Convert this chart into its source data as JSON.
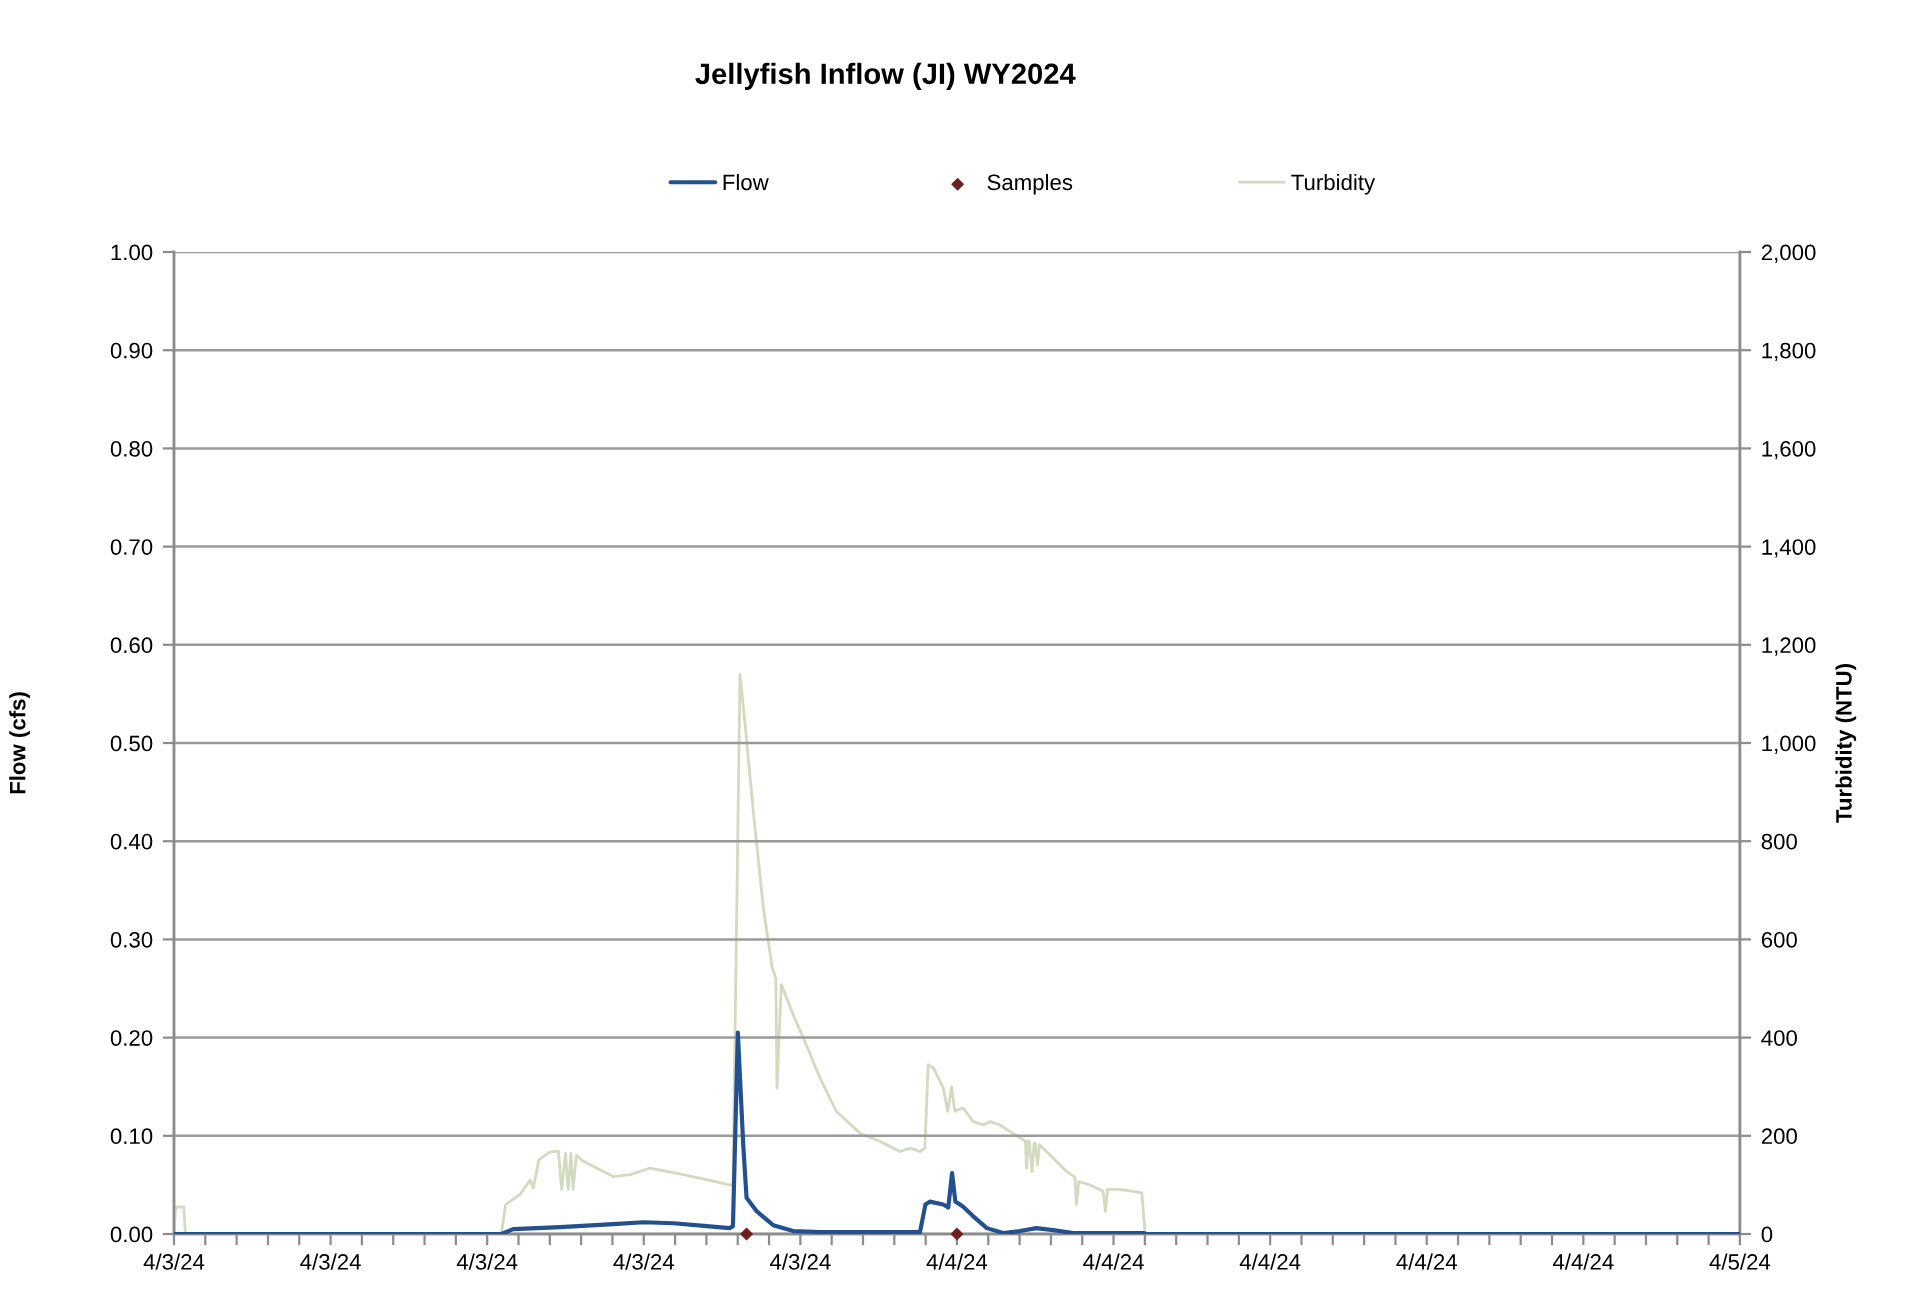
{
  "chart_data": {
    "type": "line",
    "title": "Jellyfish Inflow (JI) WY2024",
    "ylabel": "Flow (cfs)",
    "y2label": "Turbidity (NTU)",
    "xlim": [
      "2024-04-03T00:00",
      "2024-04-05T00:00"
    ],
    "xticks": [
      {
        "value": "2024-04-03T00:00",
        "label": "4/3/24"
      },
      {
        "value": "2024-04-03T00:57:36",
        "label": null
      },
      {
        "value": "2024-04-03T01:55:12",
        "label": null
      },
      {
        "value": "2024-04-03T02:52:48",
        "label": null
      },
      {
        "value": "2024-04-03T03:50:24",
        "label": null
      },
      {
        "value": "2024-04-03T04:48",
        "label": "4/3/24"
      },
      {
        "value": "2024-04-03T05:45:36",
        "label": null
      },
      {
        "value": "2024-04-03T06:43:12",
        "label": null
      },
      {
        "value": "2024-04-03T07:40:48",
        "label": null
      },
      {
        "value": "2024-04-03T08:38:24",
        "label": null
      },
      {
        "value": "2024-04-03T09:36",
        "label": "4/3/24"
      },
      {
        "value": "2024-04-03T10:33:36",
        "label": null
      },
      {
        "value": "2024-04-03T11:31:12",
        "label": null
      },
      {
        "value": "2024-04-03T12:28:48",
        "label": null
      },
      {
        "value": "2024-04-03T13:26:24",
        "label": null
      },
      {
        "value": "2024-04-03T14:24",
        "label": "4/3/24"
      },
      {
        "value": "2024-04-03T15:21:36",
        "label": null
      },
      {
        "value": "2024-04-03T16:19:12",
        "label": null
      },
      {
        "value": "2024-04-03T17:16:48",
        "label": null
      },
      {
        "value": "2024-04-03T18:14:24",
        "label": null
      },
      {
        "value": "2024-04-03T19:12",
        "label": "4/3/24"
      },
      {
        "value": "2024-04-03T20:09:36",
        "label": null
      },
      {
        "value": "2024-04-03T21:07:12",
        "label": null
      },
      {
        "value": "2024-04-03T22:04:48",
        "label": null
      },
      {
        "value": "2024-04-03T23:02:24",
        "label": null
      },
      {
        "value": "2024-04-04T00:00",
        "label": "4/4/24"
      },
      {
        "value": "2024-04-04T00:57:36",
        "label": null
      },
      {
        "value": "2024-04-04T01:55:12",
        "label": null
      },
      {
        "value": "2024-04-04T02:52:48",
        "label": null
      },
      {
        "value": "2024-04-04T03:50:24",
        "label": null
      },
      {
        "value": "2024-04-04T04:48",
        "label": "4/4/24"
      },
      {
        "value": "2024-04-04T05:45:36",
        "label": null
      },
      {
        "value": "2024-04-04T06:43:12",
        "label": null
      },
      {
        "value": "2024-04-04T07:40:48",
        "label": null
      },
      {
        "value": "2024-04-04T08:38:24",
        "label": null
      },
      {
        "value": "2024-04-04T09:36",
        "label": "4/4/24"
      },
      {
        "value": "2024-04-04T10:33:36",
        "label": null
      },
      {
        "value": "2024-04-04T11:31:12",
        "label": null
      },
      {
        "value": "2024-04-04T12:28:48",
        "label": null
      },
      {
        "value": "2024-04-04T13:26:24",
        "label": null
      },
      {
        "value": "2024-04-04T14:24",
        "label": "4/4/24"
      },
      {
        "value": "2024-04-04T15:21:36",
        "label": null
      },
      {
        "value": "2024-04-04T16:19:12",
        "label": null
      },
      {
        "value": "2024-04-04T17:16:48",
        "label": null
      },
      {
        "value": "2024-04-04T18:14:24",
        "label": null
      },
      {
        "value": "2024-04-04T19:12",
        "label": "4/4/24"
      },
      {
        "value": "2024-04-04T20:09:36",
        "label": null
      },
      {
        "value": "2024-04-04T21:07:12",
        "label": null
      },
      {
        "value": "2024-04-04T22:04:48",
        "label": null
      },
      {
        "value": "2024-04-04T23:02:24",
        "label": null
      },
      {
        "value": "2024-04-05T00:00",
        "label": "4/5/24"
      }
    ],
    "ylim": [
      0,
      1
    ],
    "yticks": [
      {
        "value": 0,
        "label": "0.00"
      },
      {
        "value": 0.1,
        "label": "0.10"
      },
      {
        "value": 0.2,
        "label": "0.20"
      },
      {
        "value": 0.3,
        "label": "0.30"
      },
      {
        "value": 0.4,
        "label": "0.40"
      },
      {
        "value": 0.5,
        "label": "0.50"
      },
      {
        "value": 0.6,
        "label": "0.60"
      },
      {
        "value": 0.7,
        "label": "0.70"
      },
      {
        "value": 0.8,
        "label": "0.80"
      },
      {
        "value": 0.9,
        "label": "0.90"
      },
      {
        "value": 1,
        "label": "1.00"
      }
    ],
    "y2lim": [
      0,
      2000
    ],
    "y2ticks": [
      0,
      200,
      400,
      600,
      800,
      {
        "value": 1000,
        "label": "1,000"
      },
      {
        "value": 1200,
        "label": "1,200"
      },
      {
        "value": 1400,
        "label": "1,400"
      },
      {
        "value": 1600,
        "label": "1,600"
      },
      {
        "value": 1800,
        "label": "1,800"
      },
      {
        "value": 2000,
        "label": "2,000"
      }
    ],
    "grid": "y",
    "legend": "top",
    "series": [
      {
        "name": "Flow",
        "color": "#23508e",
        "x": [
          "2024-04-03T00:00",
          "2024-04-03T10:02",
          "2024-04-03T10:24",
          "2024-04-03T11:50",
          "2024-04-03T13:28",
          "2024-04-03T14:23",
          "2024-04-03T15:19",
          "2024-04-03T16:20",
          "2024-04-03T17:02",
          "2024-04-03T17:08",
          "2024-04-03T17:17",
          "2024-04-03T17:27",
          "2024-04-03T17:33",
          "2024-04-03T17:52",
          "2024-04-03T18:22",
          "2024-04-03T18:59",
          "2024-04-03T19:48",
          "2024-04-03T22:52",
          "2024-04-03T23:02",
          "2024-04-03T23:10",
          "2024-04-03T23:35",
          "2024-04-03T23:44",
          "2024-04-03T23:51",
          "2024-04-03T23:57",
          "2024-04-04T00:11",
          "2024-04-04T00:30",
          "2024-04-04T00:55",
          "2024-04-04T01:25",
          "2024-04-04T01:56",
          "2024-04-04T02:26",
          "2024-04-04T02:57",
          "2024-04-04T03:34",
          "2024-04-04T05:43",
          "2024-04-04T05:48",
          "2024-04-05T00:00"
        ],
        "values": [
          0,
          0,
          0.005,
          0.007,
          0.01,
          0.012,
          0.011,
          0.008,
          0.006,
          0.008,
          0.205,
          0.09,
          0.037,
          0.023,
          0.009,
          0.003,
          0.002,
          0.002,
          0.03,
          0.033,
          0.03,
          0.027,
          0.062,
          0.033,
          0.028,
          0.018,
          0.006,
          0.001,
          0.003,
          0.006,
          0.004,
          0.001,
          0.001,
          0,
          0
        ]
      },
      {
        "name": "Samples",
        "type": "scatter",
        "marker": "diamond",
        "color": "#6e1f1f",
        "x": [
          "2024-04-03T17:33",
          "2024-04-04T00:00"
        ],
        "values": [
          0,
          0
        ]
      },
      {
        "name": "Turbidity",
        "axis": "y2",
        "color": "#d2dabf",
        "x": [
          "2024-04-03T00:00",
          "2024-04-03T00:03",
          "2024-04-03T00:18",
          "2024-04-03T00:21",
          "2024-04-03T00:24",
          "2024-04-03T10:02",
          "2024-04-03T10:10",
          "2024-04-03T10:36",
          "2024-04-03T10:55",
          "2024-04-03T11:01",
          "2024-04-03T11:11",
          "2024-04-03T11:31",
          "2024-04-03T11:47",
          "2024-04-03T11:53",
          "2024-04-03T12:00",
          "2024-04-03T12:05",
          "2024-04-03T12:10",
          "2024-04-03T12:14",
          "2024-04-03T12:20",
          "2024-04-03T12:33",
          "2024-04-03T12:58",
          "2024-04-03T13:28",
          "2024-04-03T13:59",
          "2024-04-03T14:35",
          "2024-04-03T15:19",
          "2024-04-03T16:07",
          "2024-04-03T17:02",
          "2024-04-03T17:08",
          "2024-04-03T17:21",
          "2024-04-03T17:31",
          "2024-04-03T17:46",
          "2024-04-03T18:04",
          "2024-04-03T18:20",
          "2024-04-03T18:27",
          "2024-04-03T18:29",
          "2024-04-03T18:37",
          "2024-04-03T18:59",
          "2024-04-03T19:23",
          "2024-04-03T19:48",
          "2024-04-03T20:18",
          "2024-04-03T21:02",
          "2024-04-03T21:38",
          "2024-04-03T22:15",
          "2024-04-03T22:34",
          "2024-04-03T22:52",
          "2024-04-03T23:01",
          "2024-04-03T23:07",
          "2024-04-03T23:17",
          "2024-04-03T23:35",
          "2024-04-03T23:43",
          "2024-04-03T23:50",
          "2024-04-03T23:56",
          "2024-04-04T00:11",
          "2024-04-04T00:30",
          "2024-04-04T00:49",
          "2024-04-04T01:01",
          "2024-04-04T01:19",
          "2024-04-04T01:37",
          "2024-04-04T01:56",
          "2024-04-04T02:06",
          "2024-04-04T02:08",
          "2024-04-04T02:11",
          "2024-04-04T02:13",
          "2024-04-04T02:18",
          "2024-04-04T02:22",
          "2024-04-04T02:24",
          "2024-04-04T02:28",
          "2024-04-04T02:32",
          "2024-04-04T02:57",
          "2024-04-04T03:22",
          "2024-04-04T03:37",
          "2024-04-04T03:40",
          "2024-04-04T03:44",
          "2024-04-04T04:05",
          "2024-04-04T04:29",
          "2024-04-04T04:33",
          "2024-04-04T04:37",
          "2024-04-04T04:59",
          "2024-04-04T05:24",
          "2024-04-04T05:40",
          "2024-04-04T05:46"
        ],
        "values": [
          0,
          55,
          55,
          0,
          null,
          0,
          60,
          80,
          110,
          94,
          151,
          167,
          169,
          91,
          164,
          91,
          164,
          91,
          160,
          148,
          134,
          117,
          121,
          134,
          125,
          114,
          100,
          100,
          1140,
          1030,
          854,
          664,
          544,
          520,
          297,
          508,
          446,
          385,
          318,
          250,
          205,
          189,
          168,
          175,
          168,
          175,
          345,
          338,
          297,
          250,
          300,
          250,
          257,
          229,
          222,
          229,
          222,
          209,
          196,
          189,
          134,
          189,
          189,
          127,
          185,
          185,
          141,
          182,
          155,
          127,
          116,
          60,
          107,
          100,
          87,
          46,
          91,
          91,
          87,
          84,
          0
        ]
      }
    ]
  }
}
